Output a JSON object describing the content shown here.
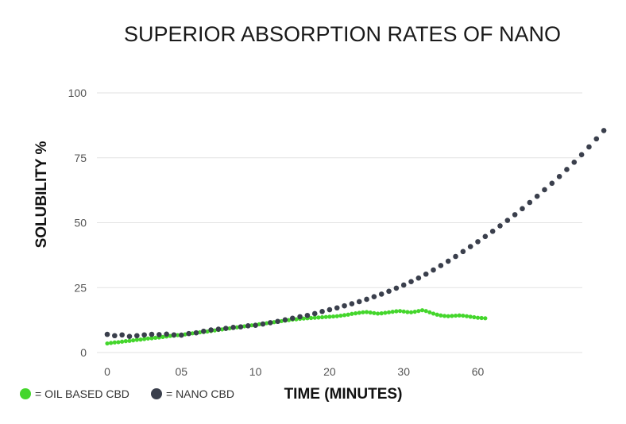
{
  "chart_data": {
    "type": "scatter",
    "title": "SUPERIOR ABSORPTION RATES OF NANO",
    "xlabel": "TIME (MINUTES)",
    "ylabel": "SOLUBILITY %",
    "x_tick_labels": [
      "0",
      "05",
      "10",
      "20",
      "30",
      "60"
    ],
    "y_ticks": [
      0,
      25,
      50,
      75,
      100
    ],
    "ylim": [
      0,
      100
    ],
    "grid": true,
    "legend_placement": "bottom-left",
    "series": [
      {
        "name": "= OIL BASED CBD",
        "color": "#44d62c",
        "points": [
          [
            0.0,
            3.5
          ],
          [
            0.1,
            3.7
          ],
          [
            0.2,
            3.9
          ],
          [
            0.3,
            4.0
          ],
          [
            0.4,
            4.2
          ],
          [
            0.5,
            4.4
          ],
          [
            0.6,
            4.5
          ],
          [
            0.7,
            4.7
          ],
          [
            0.8,
            4.9
          ],
          [
            0.9,
            5.0
          ],
          [
            1.0,
            5.2
          ],
          [
            1.1,
            5.4
          ],
          [
            1.2,
            5.5
          ],
          [
            1.3,
            5.7
          ],
          [
            1.4,
            5.8
          ],
          [
            1.5,
            6.0
          ],
          [
            1.6,
            6.2
          ],
          [
            1.7,
            6.4
          ],
          [
            1.8,
            6.5
          ],
          [
            1.9,
            6.7
          ],
          [
            2.0,
            6.9
          ],
          [
            2.1,
            7.0
          ],
          [
            2.2,
            7.2
          ],
          [
            2.3,
            7.4
          ],
          [
            2.4,
            7.6
          ],
          [
            2.5,
            7.8
          ],
          [
            2.6,
            7.9
          ],
          [
            2.7,
            8.1
          ],
          [
            2.8,
            8.3
          ],
          [
            2.9,
            8.5
          ],
          [
            3.0,
            8.7
          ],
          [
            3.1,
            8.9
          ],
          [
            3.2,
            9.1
          ],
          [
            3.3,
            9.3
          ],
          [
            3.4,
            9.5
          ],
          [
            3.5,
            9.7
          ],
          [
            3.6,
            9.9
          ],
          [
            3.7,
            10.1
          ],
          [
            3.8,
            10.3
          ],
          [
            3.9,
            10.5
          ],
          [
            4.0,
            10.7
          ],
          [
            4.1,
            10.9
          ],
          [
            4.2,
            11.1
          ],
          [
            4.3,
            11.3
          ],
          [
            4.4,
            11.5
          ],
          [
            4.5,
            11.7
          ],
          [
            4.6,
            11.9
          ],
          [
            4.7,
            12.1
          ],
          [
            4.8,
            12.3
          ],
          [
            4.9,
            12.5
          ],
          [
            5.0,
            12.7
          ],
          [
            5.1,
            12.8
          ],
          [
            5.2,
            13.0
          ],
          [
            5.3,
            13.1
          ],
          [
            5.4,
            13.2
          ],
          [
            5.5,
            13.3
          ],
          [
            5.6,
            13.4
          ],
          [
            5.7,
            13.5
          ],
          [
            5.8,
            13.6
          ],
          [
            5.9,
            13.7
          ],
          [
            6.0,
            13.8
          ],
          [
            6.1,
            13.9
          ],
          [
            6.2,
            14.0
          ],
          [
            6.3,
            14.2
          ],
          [
            6.4,
            14.4
          ],
          [
            6.5,
            14.6
          ],
          [
            6.6,
            14.9
          ],
          [
            6.7,
            15.1
          ],
          [
            6.8,
            15.3
          ],
          [
            6.9,
            15.5
          ],
          [
            7.0,
            15.6
          ],
          [
            7.1,
            15.4
          ],
          [
            7.2,
            15.2
          ],
          [
            7.3,
            15.0
          ],
          [
            7.4,
            15.1
          ],
          [
            7.5,
            15.3
          ],
          [
            7.6,
            15.5
          ],
          [
            7.7,
            15.7
          ],
          [
            7.8,
            15.9
          ],
          [
            7.9,
            16.0
          ],
          [
            8.0,
            15.8
          ],
          [
            8.1,
            15.6
          ],
          [
            8.2,
            15.5
          ],
          [
            8.3,
            15.7
          ],
          [
            8.4,
            16.0
          ],
          [
            8.5,
            16.3
          ],
          [
            8.6,
            16.0
          ],
          [
            8.7,
            15.5
          ],
          [
            8.8,
            15.0
          ],
          [
            8.9,
            14.6
          ],
          [
            9.0,
            14.3
          ],
          [
            9.1,
            14.1
          ],
          [
            9.2,
            14.0
          ],
          [
            9.3,
            14.1
          ],
          [
            9.4,
            14.2
          ],
          [
            9.5,
            14.3
          ],
          [
            9.6,
            14.2
          ],
          [
            9.7,
            14.0
          ],
          [
            9.8,
            13.8
          ],
          [
            9.9,
            13.6
          ],
          [
            10.0,
            13.4
          ],
          [
            10.1,
            13.3
          ],
          [
            10.2,
            13.2
          ]
        ]
      },
      {
        "name": "= NANO CBD",
        "color": "#3a3f4c",
        "points": [
          [
            0.0,
            7.0
          ],
          [
            0.2,
            6.5
          ],
          [
            0.4,
            6.8
          ],
          [
            0.6,
            6.2
          ],
          [
            0.8,
            6.5
          ],
          [
            1.0,
            6.8
          ],
          [
            1.2,
            7.0
          ],
          [
            1.4,
            6.9
          ],
          [
            1.6,
            7.1
          ],
          [
            1.8,
            6.8
          ],
          [
            2.0,
            6.7
          ],
          [
            2.2,
            7.3
          ],
          [
            2.4,
            7.6
          ],
          [
            2.6,
            8.2
          ],
          [
            2.8,
            8.7
          ],
          [
            3.0,
            9.0
          ],
          [
            3.2,
            9.3
          ],
          [
            3.4,
            9.7
          ],
          [
            3.6,
            9.9
          ],
          [
            3.8,
            10.3
          ],
          [
            4.0,
            10.5
          ],
          [
            4.2,
            11.0
          ],
          [
            4.4,
            11.5
          ],
          [
            4.6,
            12.0
          ],
          [
            4.8,
            12.6
          ],
          [
            5.0,
            13.2
          ],
          [
            5.2,
            13.8
          ],
          [
            5.4,
            14.3
          ],
          [
            5.6,
            15.0
          ],
          [
            5.8,
            15.8
          ],
          [
            6.0,
            16.5
          ],
          [
            6.2,
            17.2
          ],
          [
            6.4,
            18.0
          ],
          [
            6.6,
            18.8
          ],
          [
            6.8,
            19.6
          ],
          [
            7.0,
            20.5
          ],
          [
            7.2,
            21.5
          ],
          [
            7.4,
            22.5
          ],
          [
            7.6,
            23.6
          ],
          [
            7.8,
            24.8
          ],
          [
            8.0,
            26.0
          ],
          [
            8.2,
            27.3
          ],
          [
            8.4,
            28.7
          ],
          [
            8.6,
            30.2
          ],
          [
            8.8,
            31.8
          ],
          [
            9.0,
            33.5
          ],
          [
            9.2,
            35.2
          ],
          [
            9.4,
            37.0
          ],
          [
            9.6,
            38.9
          ],
          [
            9.8,
            40.8
          ],
          [
            10.0,
            42.7
          ],
          [
            10.2,
            44.7
          ],
          [
            10.4,
            46.7
          ],
          [
            10.6,
            48.8
          ],
          [
            10.8,
            50.9
          ],
          [
            11.0,
            53.1
          ],
          [
            11.2,
            55.4
          ],
          [
            11.4,
            57.8
          ],
          [
            11.6,
            60.2
          ],
          [
            11.8,
            62.7
          ],
          [
            12.0,
            65.2
          ],
          [
            12.2,
            67.8
          ],
          [
            12.4,
            70.5
          ],
          [
            12.6,
            73.3
          ],
          [
            12.8,
            76.2
          ],
          [
            13.0,
            79.2
          ],
          [
            13.2,
            82.3
          ],
          [
            13.4,
            85.5
          ]
        ]
      }
    ]
  }
}
